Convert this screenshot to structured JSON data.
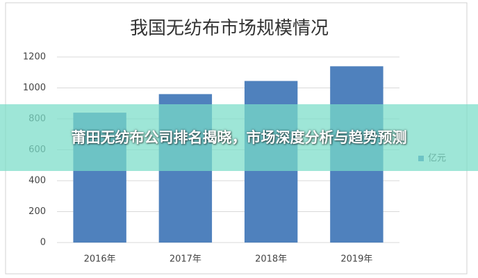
{
  "chart_data": {
    "type": "bar",
    "title": "我国无纺布市场规模情况",
    "categories": [
      "2016年",
      "2017年",
      "2018年",
      "2019年"
    ],
    "series": [
      {
        "name": "亿元",
        "color": "#4f81bd",
        "values": [
          840,
          960,
          1045,
          1140
        ]
      }
    ],
    "ylim": [
      0,
      1200
    ],
    "yticks": [
      0,
      200,
      400,
      600,
      800,
      1000,
      1200
    ],
    "grid": true,
    "legend": "right"
  },
  "overlay_title": "莆田无纺布公司排名揭晓，市场深度分析与趋势预测"
}
